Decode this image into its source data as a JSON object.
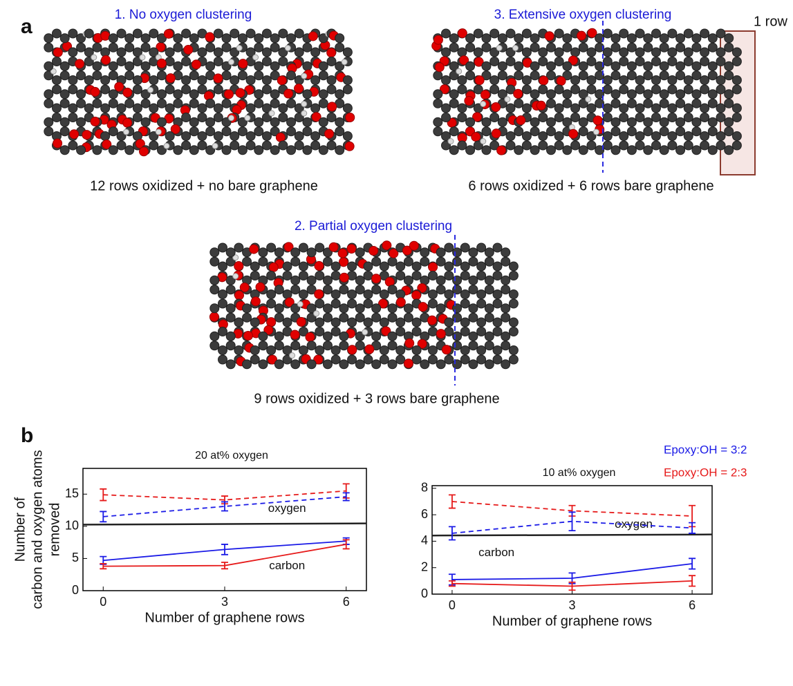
{
  "panel_a": {
    "label": "a",
    "structures": [
      {
        "title": "1. No oxygen clustering",
        "caption": "12 rows oxidized +  no bare graphene"
      },
      {
        "title": "3. Extensive oxygen clustering",
        "caption": "6 rows oxidized +  6 rows bare graphene",
        "note": "1 row"
      },
      {
        "title": "2. Partial oxygen clustering",
        "caption": "9 rows oxidized +  3 rows bare graphene"
      }
    ]
  },
  "panel_b": {
    "label": "b",
    "legend": [
      {
        "label": "Epoxy:OH = 3:2",
        "color": "#1a1ae6"
      },
      {
        "label": "Epoxy:OH = 2:3",
        "color": "#e61a1a"
      }
    ]
  },
  "chart_data": [
    {
      "type": "line",
      "title": "20 at% oxygen",
      "xlabel": "Number of graphene rows",
      "ylabel": [
        "Number of",
        "carbon and oxygen atoms",
        "removed"
      ],
      "region_labels": [
        "oxygen",
        "carbon"
      ],
      "x": [
        0,
        3,
        6
      ],
      "xlim": [
        -0.5,
        6.5
      ],
      "xticks": [
        0,
        3,
        6
      ],
      "ylim": [
        0,
        19
      ],
      "yticks": [
        0,
        5,
        10,
        15
      ],
      "series": [
        {
          "color": "#e61a1a",
          "dashed": true,
          "values": [
            14.9,
            14.1,
            15.5
          ],
          "errors": [
            0.9,
            0.6,
            1.1
          ]
        },
        {
          "color": "#1a1ae6",
          "dashed": true,
          "values": [
            11.5,
            13.1,
            14.6
          ],
          "errors": [
            0.8,
            0.7,
            0.6
          ]
        },
        {
          "color": "#1a1ae6",
          "dashed": false,
          "values": [
            4.7,
            6.4,
            7.7
          ],
          "errors": [
            0.6,
            0.8,
            0.5
          ]
        },
        {
          "color": "#e61a1a",
          "dashed": false,
          "values": [
            3.8,
            3.9,
            7.2
          ],
          "errors": [
            0.4,
            0.5,
            0.7
          ]
        }
      ]
    },
    {
      "type": "line",
      "title": "10 at% oxygen",
      "xlabel": "Number of graphene rows",
      "region_labels": [
        "oxygen",
        "carbon"
      ],
      "x": [
        0,
        3,
        6
      ],
      "xlim": [
        -0.5,
        6.5
      ],
      "xticks": [
        0,
        3,
        6
      ],
      "ylim": [
        0,
        8.2
      ],
      "yticks": [
        0,
        2,
        4,
        6,
        8
      ],
      "series": [
        {
          "color": "#e61a1a",
          "dashed": true,
          "values": [
            7.0,
            6.3,
            5.9
          ],
          "errors": [
            0.5,
            0.4,
            0.8
          ]
        },
        {
          "color": "#1a1ae6",
          "dashed": true,
          "values": [
            4.6,
            5.5,
            5.0
          ],
          "errors": [
            0.5,
            0.7,
            0.4
          ]
        },
        {
          "color": "#1a1ae6",
          "dashed": false,
          "values": [
            1.1,
            1.2,
            2.3
          ],
          "errors": [
            0.4,
            0.4,
            0.4
          ]
        },
        {
          "color": "#e61a1a",
          "dashed": false,
          "values": [
            0.8,
            0.6,
            1.0
          ],
          "errors": [
            0.2,
            0.3,
            0.4
          ]
        }
      ]
    }
  ]
}
